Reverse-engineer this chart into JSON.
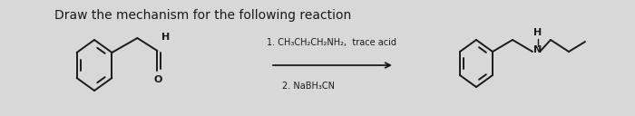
{
  "title": "Draw the mechanism for the following reaction",
  "title_fontsize": 10,
  "title_fontweight": "normal",
  "bg_color": "#d8d8d8",
  "text_color": "#1a1a1a",
  "reagent_line1": "1. CH₃CH₂CH₂NH₂,  trace acid",
  "reagent_line2": "2. NaBH₃CN",
  "lw": 1.4
}
